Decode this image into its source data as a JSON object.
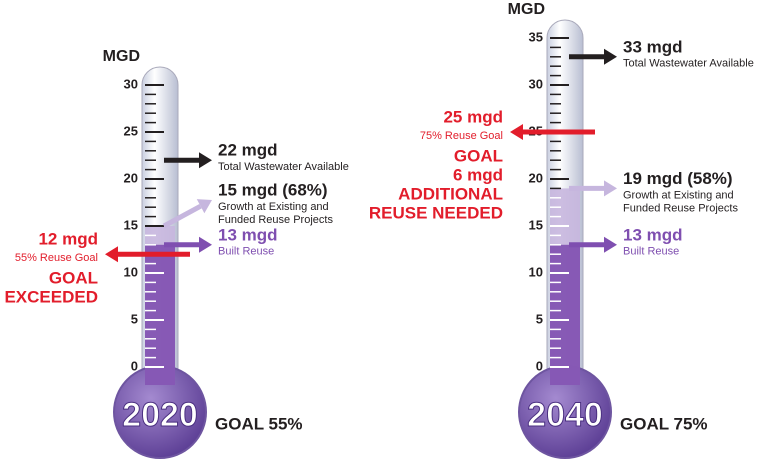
{
  "chart_data": [
    {
      "type": "thermometer",
      "unit": "MGD",
      "year": "2020",
      "goal": "GOAL 55%",
      "ylim": [
        0,
        30
      ],
      "yticks": [
        0,
        5,
        10,
        15,
        20,
        25,
        30
      ],
      "minor_yticks": [
        1,
        2,
        3,
        4,
        6,
        7,
        8,
        9,
        11,
        12,
        13,
        14,
        16,
        17,
        18,
        19,
        21,
        22,
        23,
        24,
        26,
        27,
        28,
        29
      ],
      "markers": [
        {
          "value": 22,
          "label": "22 mgd",
          "notes": [
            "Total Wastewater Available"
          ],
          "color": "#231f20",
          "side": "right"
        },
        {
          "value": 15,
          "label": "15 mgd (68%)",
          "notes": [
            "Growth at Existing and",
            "Funded Reuse Projects"
          ],
          "color": "#c6b6de",
          "side": "right",
          "fill": true
        },
        {
          "value": 13,
          "label": "13 mgd",
          "notes": [
            "Built Reuse"
          ],
          "color": "#7f4fb0",
          "side": "right",
          "fill": true
        },
        {
          "value": 12,
          "label": "12 mgd",
          "notes": [
            "55% Reuse Goal"
          ],
          "callout": [
            "GOAL",
            "EXCEEDED"
          ],
          "color": "#e21d2b",
          "side": "left"
        }
      ]
    },
    {
      "type": "thermometer",
      "unit": "MGD",
      "year": "2040",
      "goal": "GOAL 75%",
      "ylim": [
        0,
        35
      ],
      "yticks": [
        0,
        5,
        10,
        15,
        20,
        25,
        30,
        35
      ],
      "minor_yticks": [
        1,
        2,
        3,
        4,
        6,
        7,
        8,
        9,
        11,
        12,
        13,
        14,
        16,
        17,
        18,
        19,
        21,
        22,
        23,
        24,
        26,
        27,
        28,
        29,
        31,
        32,
        33,
        34
      ],
      "markers": [
        {
          "value": 33,
          "label": "33 mgd",
          "notes": [
            "Total Wastewater Available"
          ],
          "color": "#231f20",
          "side": "right"
        },
        {
          "value": 25,
          "label": "25 mgd",
          "notes": [
            "75% Reuse Goal"
          ],
          "callout": [
            "GOAL",
            "6 mgd",
            "ADDITIONAL",
            "REUSE NEEDED"
          ],
          "color": "#e21d2b",
          "side": "left"
        },
        {
          "value": 19,
          "label": "19 mgd (58%)",
          "notes": [
            "Growth at Existing and",
            "Funded Reuse Projects"
          ],
          "color": "#c6b6de",
          "side": "right",
          "fill": true
        },
        {
          "value": 13,
          "label": "13 mgd",
          "notes": [
            "Built Reuse"
          ],
          "color": "#7f4fb0",
          "side": "right",
          "fill": true
        }
      ]
    }
  ]
}
